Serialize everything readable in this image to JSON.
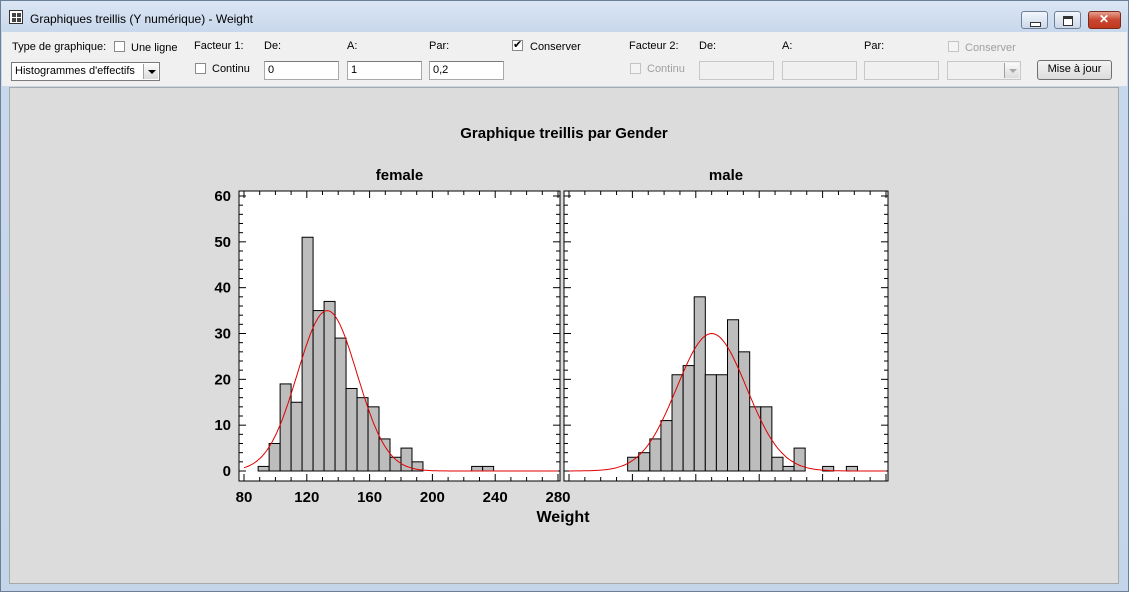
{
  "window": {
    "title": "Graphiques treillis (Y numérique) - Weight"
  },
  "toolbar": {
    "chart_type_label": "Type de graphique:",
    "one_line_label": "Une ligne",
    "one_line_checked": false,
    "chart_type_value": "Histogrammes d'effectifs",
    "factor1": {
      "label": "Facteur 1:",
      "continuous_label": "Continu",
      "continuous_checked": false,
      "from_label": "De:",
      "from_value": "0",
      "to_label": "A:",
      "to_value": "1",
      "by_label": "Par:",
      "by_value": "0,2",
      "keep_label": "Conserver",
      "keep_checked": true
    },
    "factor2": {
      "label": "Facteur 2:",
      "continuous_label": "Continu",
      "from_label": "De:",
      "to_label": "A:",
      "by_label": "Par:",
      "keep_label": "Conserver"
    },
    "update_button": "Mise à jour"
  },
  "chart_data": {
    "type": "bar",
    "title": "Graphique treillis par Gender",
    "xlabel": "Weight",
    "xlim": [
      80,
      280
    ],
    "ylim": [
      0,
      60
    ],
    "x_ticks": [
      "80",
      "120",
      "160",
      "200",
      "240",
      "280"
    ],
    "y_ticks": [
      "0",
      "10",
      "20",
      "30",
      "40",
      "50",
      "60"
    ],
    "bin_width": 7,
    "fit_color": "#e00000",
    "bar_color": "#bdbdbd",
    "panels": [
      {
        "name": "female",
        "bins_start": [
          89,
          96,
          103,
          110,
          117,
          124,
          131,
          138,
          145,
          152,
          159,
          166,
          173,
          180,
          187,
          225,
          232
        ],
        "counts": [
          1,
          6,
          19,
          15,
          51,
          35,
          37,
          29,
          18,
          16,
          14,
          7,
          3,
          5,
          2,
          1,
          1
        ],
        "fit": {
          "mean": 133,
          "sd": 19,
          "peak": 35
        }
      },
      {
        "name": "male",
        "bins_start": [
          117,
          124,
          131,
          138,
          145,
          152,
          159,
          166,
          173,
          180,
          187,
          194,
          201,
          208,
          215,
          222,
          240,
          255
        ],
        "counts": [
          3,
          4,
          7,
          11,
          21,
          23,
          38,
          21,
          21,
          33,
          26,
          14,
          14,
          3,
          1,
          5,
          1,
          1
        ],
        "fit": {
          "mean": 170,
          "sd": 22,
          "peak": 30
        }
      }
    ]
  }
}
